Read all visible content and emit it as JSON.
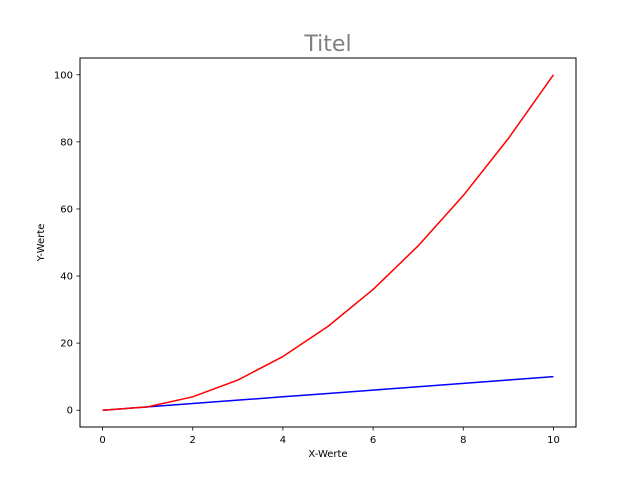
{
  "chart_data": {
    "type": "line",
    "title": "Titel",
    "title_color": "#808080",
    "xlabel": "X-Werte",
    "ylabel": "Y-Werte",
    "x": [
      0,
      1,
      2,
      3,
      4,
      5,
      6,
      7,
      8,
      9,
      10
    ],
    "series": [
      {
        "color": "#0000ff",
        "values": [
          0,
          1,
          2,
          3,
          4,
          5,
          6,
          7,
          8,
          9,
          10
        ]
      },
      {
        "color": "#ff0000",
        "values": [
          0,
          1,
          4,
          9,
          16,
          25,
          36,
          49,
          64,
          81,
          100
        ]
      }
    ],
    "xlim": [
      -0.5,
      10.5
    ],
    "ylim": [
      -5,
      105
    ],
    "xticks": [
      0,
      2,
      4,
      6,
      8,
      10
    ],
    "yticks": [
      0,
      20,
      40,
      60,
      80,
      100
    ],
    "grid": false,
    "legend": "none"
  }
}
